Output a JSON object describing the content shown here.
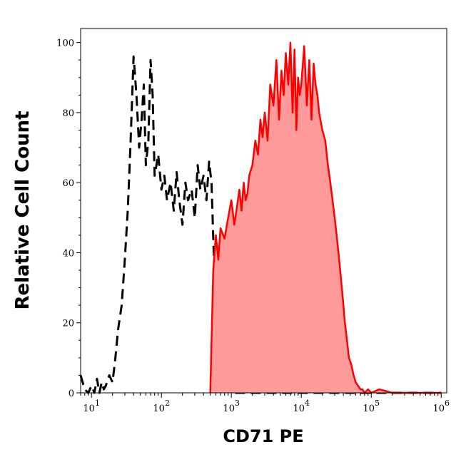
{
  "chart_data": {
    "type": "area",
    "xlabel": "CD71 PE",
    "ylabel": "Relative Cell Count",
    "x_scale": "log",
    "xlim": [
      7,
      1200000
    ],
    "ylim": [
      0,
      104
    ],
    "x_tick_labels": [
      {
        "value": 10,
        "base": "10",
        "exp": "1"
      },
      {
        "value": 100,
        "base": "10",
        "exp": "2"
      },
      {
        "value": 1000,
        "base": "10",
        "exp": "3"
      },
      {
        "value": 10000,
        "base": "10",
        "exp": "4"
      },
      {
        "value": 100000,
        "base": "10",
        "exp": "5"
      },
      {
        "value": 1000000,
        "base": "10",
        "exp": "6"
      }
    ],
    "y_ticks": [
      0,
      20,
      40,
      60,
      80,
      100
    ],
    "y_tick_labels": [
      "0",
      "20",
      "40",
      "60",
      "80",
      "100"
    ],
    "grid": false,
    "legend": "none",
    "series": [
      {
        "style": "dashed",
        "color": "#000000",
        "fill": "none",
        "x": [
          7,
          8,
          9,
          10,
          11,
          12,
          13,
          14,
          15,
          16,
          18,
          20,
          22,
          24,
          27,
          30,
          33,
          36,
          40,
          44,
          48,
          52,
          56,
          60,
          65,
          70,
          75,
          80,
          90,
          100,
          110,
          120,
          135,
          150,
          165,
          180,
          200,
          220,
          240,
          270,
          300,
          330,
          360,
          400,
          440,
          480,
          520,
          560,
          600,
          700,
          1000,
          3000,
          10000,
          100000,
          1000000
        ],
        "y": [
          5,
          1,
          0,
          2,
          0,
          4,
          0,
          3,
          1,
          2,
          5,
          3,
          10,
          18,
          25,
          38,
          52,
          70,
          96,
          85,
          70,
          78,
          88,
          65,
          72,
          95,
          85,
          62,
          68,
          58,
          62,
          55,
          60,
          52,
          63,
          55,
          48,
          60,
          55,
          58,
          50,
          65,
          58,
          62,
          55,
          66,
          60,
          40,
          20,
          2,
          0,
          0,
          0,
          0,
          0
        ]
      },
      {
        "style": "solid",
        "color": "#ff0000",
        "fill": "#ff9a9a",
        "x": [
          500,
          550,
          600,
          650,
          700,
          800,
          900,
          1000,
          1100,
          1200,
          1300,
          1400,
          1500,
          1600,
          1700,
          1800,
          2000,
          2200,
          2400,
          2600,
          2800,
          3000,
          3300,
          3600,
          4000,
          4400,
          4800,
          5200,
          5600,
          6000,
          6500,
          7000,
          7500,
          8000,
          8500,
          9000,
          9500,
          10000,
          11000,
          12000,
          13000,
          14000,
          15000,
          16000,
          17000,
          18000,
          20000,
          22000,
          24000,
          26000,
          28000,
          30000,
          32000,
          34000,
          36000,
          38000,
          40000,
          42000,
          45000,
          48000,
          52000,
          56000,
          60000,
          65000,
          70000,
          75000,
          80000,
          90000,
          100000,
          130000,
          200000,
          500000,
          1000000
        ],
        "y": [
          0,
          35,
          45,
          38,
          47,
          44,
          50,
          55,
          48,
          53,
          58,
          52,
          60,
          55,
          57,
          62,
          65,
          72,
          68,
          78,
          73,
          80,
          72,
          88,
          82,
          95,
          78,
          92,
          85,
          97,
          88,
          100,
          80,
          98,
          75,
          90,
          85,
          88,
          99,
          82,
          95,
          78,
          94,
          88,
          85,
          80,
          75,
          72,
          65,
          60,
          55,
          50,
          45,
          40,
          35,
          30,
          25,
          20,
          15,
          10,
          8,
          5,
          3,
          2,
          1,
          1,
          0,
          1,
          0,
          1,
          0,
          0,
          0
        ]
      }
    ]
  }
}
